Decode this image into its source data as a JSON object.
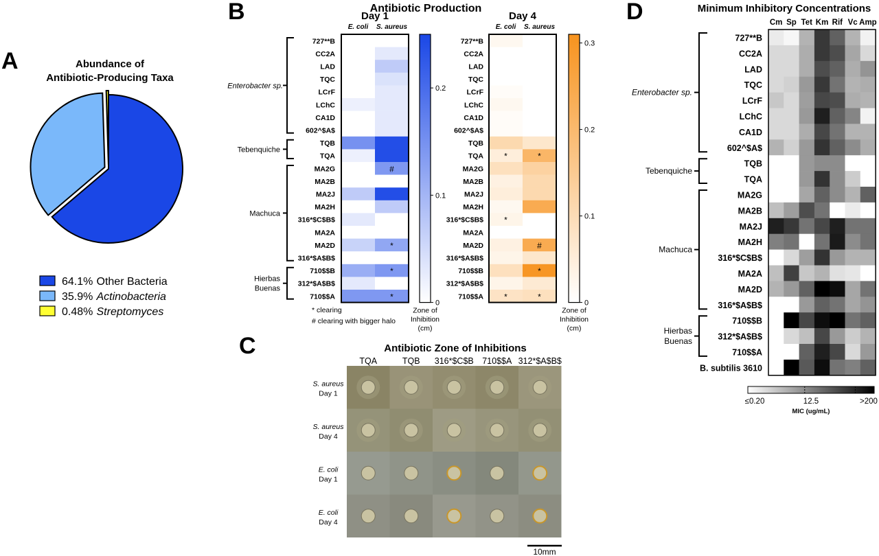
{
  "panels": {
    "a": {
      "letter": "A"
    },
    "b": {
      "letter": "B"
    },
    "c": {
      "letter": "C"
    },
    "d": {
      "letter": "D"
    }
  },
  "chart_data": [
    {
      "panel": "A",
      "type": "pie",
      "title_lines": [
        "Abundance of",
        "Antibiotic-Producing Taxa"
      ],
      "slices": [
        {
          "label_value": "64.1%",
          "label_name": "Other Bacteria",
          "italic": false,
          "value": 64.1,
          "color": "#1a47e6"
        },
        {
          "label_value": "35.9%",
          "label_name": "Actinobacteria",
          "italic": true,
          "value": 35.9,
          "color": "#7ab8fa"
        },
        {
          "label_value": "0.48%",
          "label_name": "Streptomyces",
          "italic": true,
          "value": 0.48,
          "color": "#ffff33"
        }
      ]
    },
    {
      "panel": "B",
      "type": "heatmap",
      "title": "Antibiotic Production",
      "rows": [
        "727**B",
        "CC2A",
        "LAD",
        "TQC",
        "LCrF",
        "LChC",
        "CA1D",
        "602^$A$",
        "TQB",
        "TQA",
        "MA2G",
        "MA2B",
        "MA2J",
        "MA2H",
        "316*$C$B$",
        "MA2A",
        "MA2D",
        "316*$A$B$",
        "710$$B",
        "312*$A$B$",
        "710$$A"
      ],
      "groups": [
        {
          "label": "Enterobacter sp.",
          "italic": true,
          "start": 0,
          "end": 7
        },
        {
          "label": "Tebenquiche",
          "italic": false,
          "start": 8,
          "end": 9
        },
        {
          "label": "Machuca",
          "italic": false,
          "start": 10,
          "end": 17
        },
        {
          "label": "Hierbas Buenas",
          "lines": [
            "Hierbas",
            "Buenas"
          ],
          "italic": false,
          "start": 18,
          "end": 20
        }
      ],
      "columns": [
        "E. coli",
        "S. aureus"
      ],
      "heatmaps": [
        {
          "label": "Day 1",
          "colormap": "blue",
          "color": "#1a47e6",
          "range": [
            0,
            0.25
          ],
          "ticks": [
            "0",
            "0.1",
            "0.2"
          ],
          "tick_values": [
            0,
            0.1,
            0.2
          ],
          "ecoli": [
            0,
            0,
            0,
            0,
            0,
            0.02,
            0,
            0,
            0.15,
            0.02,
            0,
            0,
            0.07,
            0,
            0.03,
            0,
            0.06,
            0,
            0.11,
            0.03,
            0.14
          ],
          "saureus": [
            0,
            0.03,
            0.07,
            0.04,
            0.03,
            0.03,
            0.03,
            0.03,
            0.24,
            0.24,
            0.14,
            0,
            0.24,
            0.07,
            0,
            0,
            0.12,
            0,
            0.14,
            0,
            0.14
          ],
          "marks_ecoli": [
            "",
            "",
            "",
            "",
            "",
            "",
            "",
            "",
            "",
            "",
            "",
            "",
            "",
            "",
            "",
            "",
            "",
            "",
            "",
            "",
            ""
          ],
          "marks_saureus": [
            "",
            "",
            "",
            "",
            "",
            "",
            "",
            "",
            "",
            "",
            "#",
            "",
            "",
            "",
            "",
            "",
            "*",
            "",
            "*",
            "",
            "*"
          ]
        },
        {
          "label": "Day 4",
          "colormap": "orange",
          "color": "#f7931e",
          "range": [
            0,
            0.31
          ],
          "ticks": [
            "0",
            "0.1",
            "0.2",
            "0.3"
          ],
          "tick_values": [
            0,
            0.1,
            0.2,
            0.3
          ],
          "ecoli": [
            0.02,
            0,
            0,
            0,
            0.01,
            0.02,
            0.01,
            0.01,
            0.11,
            0.05,
            0.09,
            0.04,
            0.05,
            0.02,
            0.03,
            0,
            0.04,
            0.03,
            0.09,
            0.03,
            0.08
          ],
          "saureus": [
            0,
            0,
            0,
            0,
            0,
            0,
            0,
            0,
            0.07,
            0.21,
            0.13,
            0.11,
            0.11,
            0.24,
            0,
            0,
            0.24,
            0.07,
            0.3,
            0.06,
            0.09
          ],
          "marks_ecoli": [
            "",
            "",
            "",
            "",
            "",
            "",
            "",
            "",
            "",
            "*",
            "",
            "",
            "",
            "",
            "*",
            "",
            "",
            "",
            "",
            "",
            "*"
          ],
          "marks_saureus": [
            "",
            "",
            "",
            "",
            "",
            "",
            "",
            "",
            "",
            "*",
            "",
            "",
            "",
            "",
            "",
            "",
            "#",
            "",
            "*",
            "",
            "*"
          ]
        }
      ],
      "colorbar_label": [
        "Zone of",
        "Inhibition",
        "(cm)"
      ],
      "notes": [
        "* clearing",
        "# clearing with bigger halo"
      ]
    },
    {
      "panel": "C",
      "type": "table",
      "title": "Antibiotic Zone of Inhibitions",
      "columns": [
        "TQA",
        "TQB",
        "316*$C$B",
        "710$$A",
        "312*$A$B$"
      ],
      "rows": [
        {
          "lines": [
            "S. aureus",
            "Day 1"
          ]
        },
        {
          "lines": [
            "S. aureus",
            "Day 4"
          ]
        },
        {
          "lines": [
            "E. coli",
            "Day 1"
          ]
        },
        {
          "lines": [
            "E. coli",
            "Day 4"
          ]
        }
      ],
      "scale_label": "10mm"
    },
    {
      "panel": "D",
      "type": "heatmap",
      "title": "Minimum Inhibitory Concentrations",
      "columns": [
        "Cm",
        "Sp",
        "Tet",
        "Km",
        "Rif",
        "Vc",
        "Amp"
      ],
      "rows": [
        "727**B",
        "CC2A",
        "LAD",
        "TQC",
        "LCrF",
        "LChC",
        "CA1D",
        "602^$A$",
        "TQB",
        "TQA",
        "MA2G",
        "MA2B",
        "MA2J",
        "MA2H",
        "316*$C$B$",
        "MA2A",
        "MA2D",
        "316*$A$B$",
        "710$$B",
        "312*$A$B$",
        "710$$A",
        "B. subtilis 3610"
      ],
      "groups": [
        {
          "label": "Enterobacter sp.",
          "italic": true,
          "start": 0,
          "end": 7
        },
        {
          "label": "Tebenquiche",
          "italic": false,
          "start": 8,
          "end": 9
        },
        {
          "label": "Machuca",
          "italic": false,
          "start": 10,
          "end": 17
        },
        {
          "label": "Hierbas Buenas",
          "lines": [
            "Hierbas",
            "Buenas"
          ],
          "italic": false,
          "start": 18,
          "end": 20
        }
      ],
      "intensity": [
        [
          0.08,
          0.03,
          0.3,
          0.78,
          0.62,
          0.3,
          0.05
        ],
        [
          0.15,
          0.15,
          0.32,
          0.78,
          0.7,
          0.35,
          0.15
        ],
        [
          0.15,
          0.15,
          0.32,
          0.7,
          0.62,
          0.32,
          0.42
        ],
        [
          0.15,
          0.18,
          0.4,
          0.78,
          0.55,
          0.3,
          0.32
        ],
        [
          0.22,
          0.15,
          0.38,
          0.72,
          0.7,
          0.32,
          0.3
        ],
        [
          0.15,
          0.15,
          0.4,
          0.88,
          0.62,
          0.48,
          0.05
        ],
        [
          0.15,
          0.15,
          0.32,
          0.72,
          0.55,
          0.3,
          0.3
        ],
        [
          0.3,
          0.18,
          0.4,
          0.8,
          0.62,
          0.45,
          0.32
        ],
        [
          0.0,
          0.0,
          0.4,
          0.45,
          0.45,
          0.0,
          0.0
        ],
        [
          0.0,
          0.0,
          0.4,
          0.8,
          0.45,
          0.2,
          0.0
        ],
        [
          0.0,
          0.0,
          0.35,
          0.62,
          0.45,
          0.3,
          0.62
        ],
        [
          0.25,
          0.38,
          0.7,
          0.55,
          0.0,
          0.08,
          0.0
        ],
        [
          0.88,
          0.78,
          0.55,
          0.72,
          0.88,
          0.55,
          0.55
        ],
        [
          0.5,
          0.55,
          0.0,
          0.55,
          0.9,
          0.45,
          0.55
        ],
        [
          0.0,
          0.15,
          0.38,
          0.8,
          0.4,
          0.3,
          0.3
        ],
        [
          0.25,
          0.75,
          0.22,
          0.3,
          0.12,
          0.1,
          0.0
        ],
        [
          0.3,
          0.4,
          0.62,
          1.0,
          0.95,
          0.35,
          0.55
        ],
        [
          0.0,
          0.0,
          0.4,
          0.62,
          0.55,
          0.35,
          0.42
        ],
        [
          0.0,
          1.0,
          0.72,
          0.95,
          1.0,
          0.55,
          0.62
        ],
        [
          0.0,
          0.15,
          0.25,
          0.72,
          0.4,
          0.2,
          0.3
        ],
        [
          0.0,
          0.0,
          0.62,
          0.88,
          0.72,
          0.15,
          0.4
        ],
        [
          0.0,
          1.0,
          0.65,
          0.95,
          0.55,
          0.5,
          0.62
        ]
      ],
      "colorbar_ticks": [
        "≤0.20",
        "12.5",
        ">200"
      ],
      "colorbar_label": "MIC (ug/mL)"
    }
  ]
}
